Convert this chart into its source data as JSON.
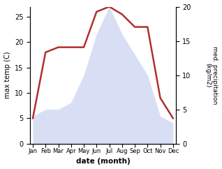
{
  "months": [
    "Jan",
    "Feb",
    "Mar",
    "Apr",
    "May",
    "Jun",
    "Jul",
    "Aug",
    "Sep",
    "Oct",
    "Nov",
    "Dec"
  ],
  "temperature": [
    5,
    18,
    19,
    19,
    19,
    26,
    27,
    25.5,
    23,
    23,
    9,
    5
  ],
  "precipitation": [
    4,
    5,
    5,
    6,
    10,
    16,
    20,
    16,
    13,
    10,
    4,
    3
  ],
  "temp_color": "#b03030",
  "precip_fill_color": "#c8d0f0",
  "background_color": "#ffffff",
  "xlabel": "date (month)",
  "ylabel_left": "max temp (C)",
  "ylabel_right": "med. precipitation\n(kg/m2)",
  "ylim_left": [
    0,
    27
  ],
  "ylim_right": [
    0,
    20
  ],
  "yticks_left": [
    0,
    5,
    10,
    15,
    20,
    25
  ],
  "yticks_right": [
    0,
    5,
    10,
    15,
    20
  ],
  "line_width": 1.8,
  "fill_alpha": 0.7
}
